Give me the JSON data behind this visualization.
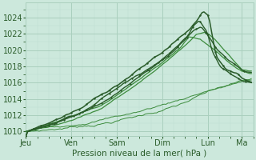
{
  "xlabel": "Pression niveau de la mer( hPa )",
  "bg_color": "#cce8dc",
  "plot_bg_color": "#cce8dc",
  "grid_major_color": "#aacfbe",
  "grid_minor_color": "#bdddd0",
  "text_color": "#2a5c2a",
  "line_dark": "#2a5c2a",
  "line_medium": "#3d8c3d",
  "ylim": [
    1009.5,
    1025.8
  ],
  "yticks": [
    1010,
    1012,
    1014,
    1016,
    1018,
    1020,
    1022,
    1024
  ],
  "day_labels": [
    "Jeu",
    "Ven",
    "Sam",
    "Dim",
    "Lun",
    "Ma"
  ],
  "day_positions": [
    0,
    24,
    48,
    72,
    96,
    114
  ],
  "xlim": [
    0,
    120
  ],
  "n": 120
}
